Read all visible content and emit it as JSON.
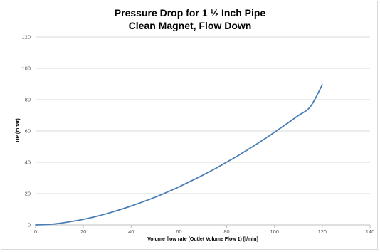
{
  "chart_data": {
    "type": "line",
    "title": "Pressure Drop for 1 ½ Inch Pipe",
    "subtitle": "Clean Magnet, Flow Down",
    "xlabel": "Volume flow rate (Outlet Volume Flow 1) [l/min]",
    "ylabel": "DP (mbar)",
    "xlim": [
      0,
      140
    ],
    "ylim": [
      0,
      120
    ],
    "x_ticks": [
      0,
      20,
      40,
      60,
      80,
      100,
      120,
      140
    ],
    "y_ticks": [
      0,
      20,
      40,
      60,
      80,
      100,
      120
    ],
    "grid": "horizontal",
    "legend": "none",
    "series": [
      {
        "color": "#4a7fb5",
        "x": [
          0,
          5,
          10,
          15,
          20,
          25,
          30,
          35,
          40,
          45,
          50,
          55,
          60,
          65,
          70,
          75,
          80,
          85,
          90,
          95,
          100,
          105,
          110,
          115,
          120
        ],
        "y": [
          0,
          0.3,
          1.0,
          2.2,
          3.6,
          5.3,
          7.3,
          9.6,
          12.1,
          14.8,
          17.7,
          20.9,
          24.3,
          28.0,
          31.8,
          35.8,
          40.1,
          44.5,
          49.2,
          54.1,
          59.2,
          64.5,
          69.9,
          75.5,
          89.5
        ]
      }
    ]
  }
}
